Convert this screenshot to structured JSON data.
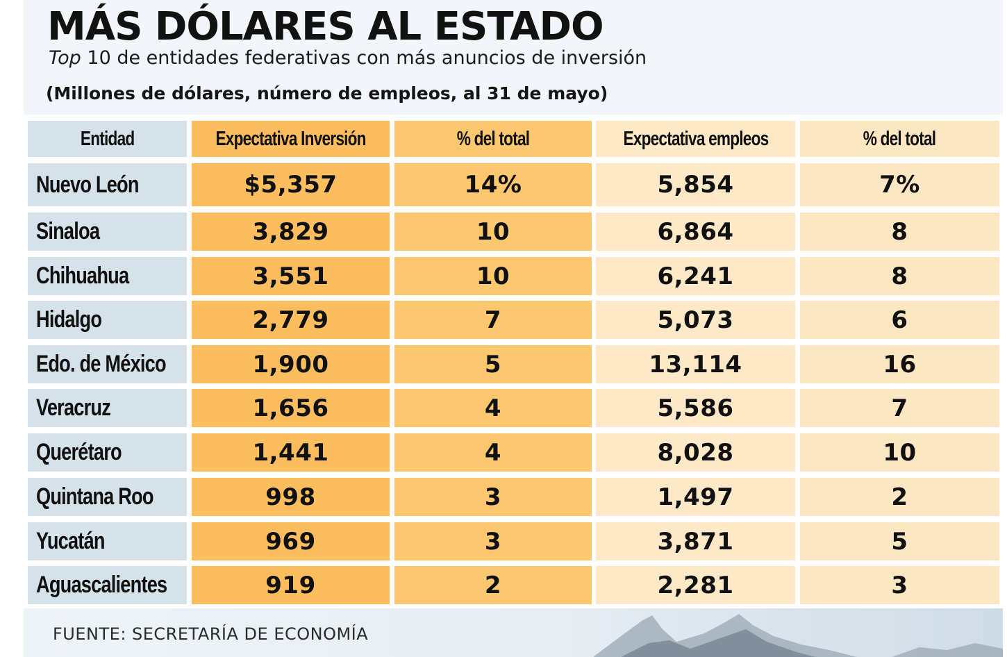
{
  "header": {
    "title": "MÁS DÓLARES AL ESTADO",
    "subtitle_italic": "Top",
    "subtitle_rest": " 10 de entidades federativas con más anuncios de inversión",
    "units": "(Millones de dólares, número de empleos, al 31 de mayo)"
  },
  "source": "FUENTE: SECRETARÍA DE ECONOMÍA",
  "colors": {
    "col_entity": "#d6e2ea",
    "col_investment": "#fbbd5e",
    "col_invest_pct": "#fcc86f",
    "col_jobs": "#fde8c8",
    "col_jobs_pct": "#fde6c2"
  },
  "chart_data": {
    "type": "table",
    "title": "MÁS DÓLARES AL ESTADO",
    "columns": [
      "Entidad",
      "Expectativa Inversión",
      "% del total",
      "Expectativa empleos",
      "% del total"
    ],
    "rows": [
      [
        "Nuevo León",
        "$5,357",
        "14%",
        "5,854",
        "7%"
      ],
      [
        "Sinaloa",
        "3,829",
        "10",
        "6,864",
        "8"
      ],
      [
        "Chihuahua",
        "3,551",
        "10",
        "6,241",
        "8"
      ],
      [
        "Hidalgo",
        "2,779",
        "7",
        "5,073",
        "6"
      ],
      [
        "Edo. de México",
        "1,900",
        "5",
        "13,114",
        "16"
      ],
      [
        "Veracruz",
        "1,656",
        "4",
        "5,586",
        "7"
      ],
      [
        "Querétaro",
        "1,441",
        "4",
        "8,028",
        "10"
      ],
      [
        "Quintana Roo",
        "998",
        "3",
        "1,497",
        "2"
      ],
      [
        "Yucatán",
        "969",
        "3",
        "3,871",
        "5"
      ],
      [
        "Aguascalientes",
        "919",
        "2",
        "2,281",
        "3"
      ]
    ]
  }
}
